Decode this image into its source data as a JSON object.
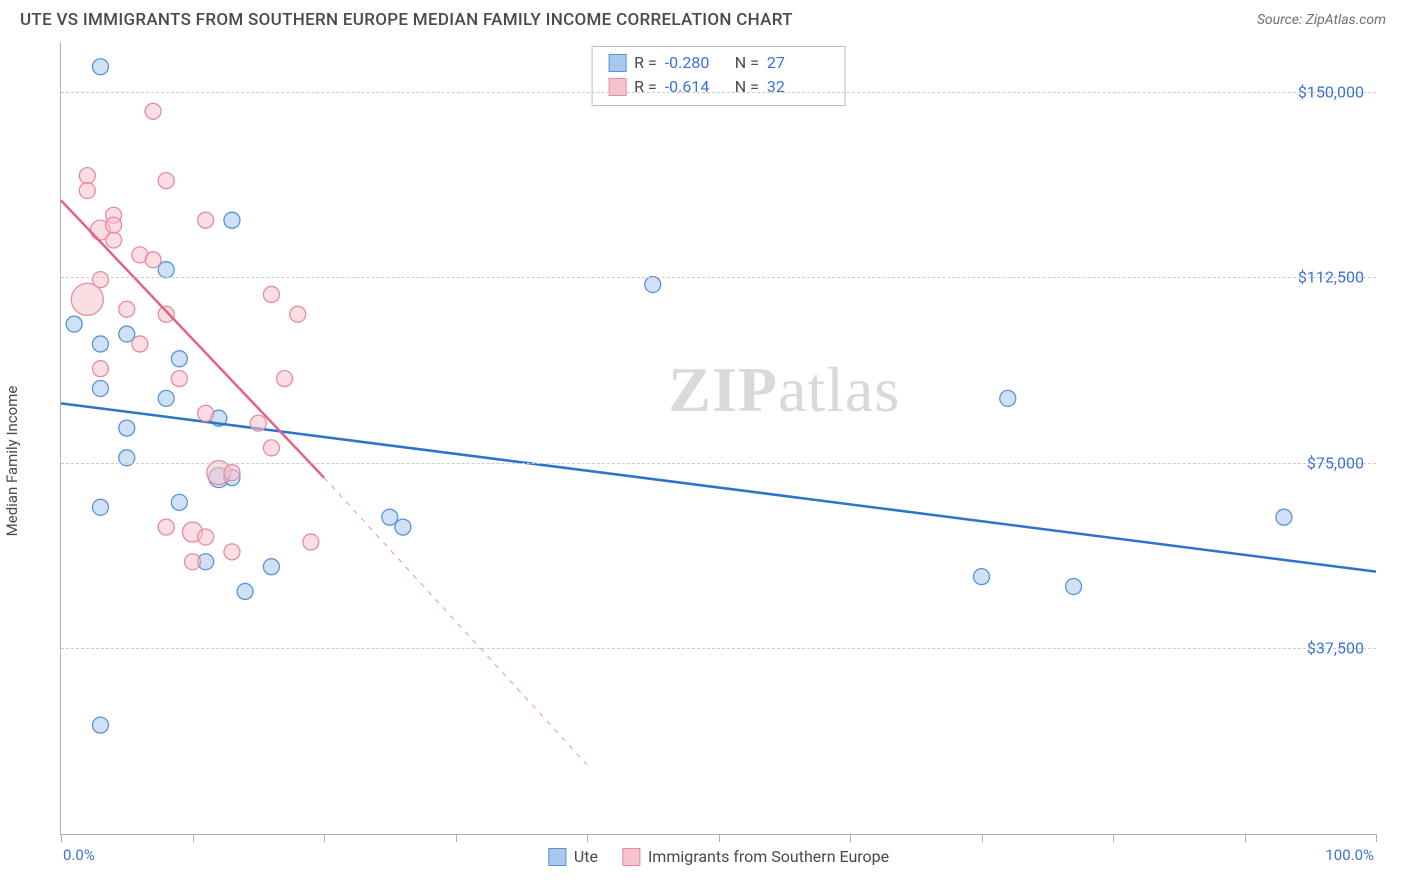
{
  "header": {
    "title": "UTE VS IMMIGRANTS FROM SOUTHERN EUROPE MEDIAN FAMILY INCOME CORRELATION CHART",
    "source": "Source: ZipAtlas.com"
  },
  "chart": {
    "type": "scatter",
    "ylabel": "Median Family Income",
    "xlim": [
      0,
      100
    ],
    "ylim": [
      0,
      160000
    ],
    "yticks": [
      {
        "value": 37500,
        "label": "$37,500"
      },
      {
        "value": 75000,
        "label": "$75,000"
      },
      {
        "value": 112500,
        "label": "$112,500"
      },
      {
        "value": 150000,
        "label": "$150,000"
      }
    ],
    "xticks_pct": [
      0,
      10,
      20,
      30,
      40,
      50,
      60,
      70,
      80,
      90,
      100
    ],
    "xaxis_min_label": "0.0%",
    "xaxis_max_label": "100.0%",
    "background_color": "#ffffff",
    "grid_color": "#cccccc",
    "axis_color": "#b0b0b0",
    "tick_label_color": "#3b74d4",
    "watermark": {
      "bold": "ZIP",
      "rest": "atlas"
    },
    "series": [
      {
        "name": "Ute",
        "color_fill": "#a9c9ec",
        "color_stroke": "#5a94d6",
        "trend_color": "#2f74c9",
        "trend_solid": {
          "x1": 0,
          "y1": 87000,
          "x2": 100,
          "y2": 53000
        },
        "trend_dashed": null,
        "stats": {
          "R": "-0.280",
          "N": "27"
        },
        "points": [
          {
            "x": 3,
            "y": 155000,
            "r": 8
          },
          {
            "x": 13,
            "y": 124000,
            "r": 8
          },
          {
            "x": 45,
            "y": 111000,
            "r": 8
          },
          {
            "x": 8,
            "y": 114000,
            "r": 8
          },
          {
            "x": 1,
            "y": 103000,
            "r": 8
          },
          {
            "x": 3,
            "y": 99000,
            "r": 8
          },
          {
            "x": 5,
            "y": 101000,
            "r": 8
          },
          {
            "x": 3,
            "y": 90000,
            "r": 8
          },
          {
            "x": 9,
            "y": 96000,
            "r": 8
          },
          {
            "x": 8,
            "y": 88000,
            "r": 8
          },
          {
            "x": 12,
            "y": 84000,
            "r": 8
          },
          {
            "x": 5,
            "y": 82000,
            "r": 8
          },
          {
            "x": 3,
            "y": 66000,
            "r": 8
          },
          {
            "x": 9,
            "y": 67000,
            "r": 8
          },
          {
            "x": 12,
            "y": 72000,
            "r": 10
          },
          {
            "x": 13,
            "y": 72000,
            "r": 8
          },
          {
            "x": 25,
            "y": 64000,
            "r": 8
          },
          {
            "x": 26,
            "y": 62000,
            "r": 8
          },
          {
            "x": 11,
            "y": 55000,
            "r": 8
          },
          {
            "x": 16,
            "y": 54000,
            "r": 8
          },
          {
            "x": 14,
            "y": 49000,
            "r": 8
          },
          {
            "x": 70,
            "y": 52000,
            "r": 8
          },
          {
            "x": 77,
            "y": 50000,
            "r": 8
          },
          {
            "x": 93,
            "y": 64000,
            "r": 8
          },
          {
            "x": 72,
            "y": 88000,
            "r": 8
          },
          {
            "x": 3,
            "y": 22000,
            "r": 8
          },
          {
            "x": 5,
            "y": 76000,
            "r": 8
          }
        ]
      },
      {
        "name": "Immigrants from Southern Europe",
        "color_fill": "#f5c3cd",
        "color_stroke": "#e88ba0",
        "trend_color": "#e26385",
        "trend_solid": {
          "x1": 0,
          "y1": 128000,
          "x2": 20,
          "y2": 72000
        },
        "trend_dashed": {
          "x1": 20,
          "y1": 72000,
          "x2": 40,
          "y2": 14000
        },
        "stats": {
          "R": "-0.614",
          "N": "32"
        },
        "points": [
          {
            "x": 7,
            "y": 146000,
            "r": 8
          },
          {
            "x": 2,
            "y": 133000,
            "r": 8
          },
          {
            "x": 8,
            "y": 132000,
            "r": 8
          },
          {
            "x": 2,
            "y": 130000,
            "r": 8
          },
          {
            "x": 4,
            "y": 125000,
            "r": 8
          },
          {
            "x": 3,
            "y": 122000,
            "r": 10
          },
          {
            "x": 4,
            "y": 120000,
            "r": 8
          },
          {
            "x": 4,
            "y": 123000,
            "r": 8
          },
          {
            "x": 11,
            "y": 124000,
            "r": 8
          },
          {
            "x": 6,
            "y": 117000,
            "r": 8
          },
          {
            "x": 7,
            "y": 116000,
            "r": 8
          },
          {
            "x": 3,
            "y": 112000,
            "r": 8
          },
          {
            "x": 2,
            "y": 108000,
            "r": 16
          },
          {
            "x": 5,
            "y": 106000,
            "r": 8
          },
          {
            "x": 8,
            "y": 105000,
            "r": 8
          },
          {
            "x": 16,
            "y": 109000,
            "r": 8
          },
          {
            "x": 18,
            "y": 105000,
            "r": 8
          },
          {
            "x": 6,
            "y": 99000,
            "r": 8
          },
          {
            "x": 3,
            "y": 94000,
            "r": 8
          },
          {
            "x": 9,
            "y": 92000,
            "r": 8
          },
          {
            "x": 17,
            "y": 92000,
            "r": 8
          },
          {
            "x": 11,
            "y": 85000,
            "r": 8
          },
          {
            "x": 15,
            "y": 83000,
            "r": 8
          },
          {
            "x": 16,
            "y": 78000,
            "r": 8
          },
          {
            "x": 12,
            "y": 73000,
            "r": 12
          },
          {
            "x": 13,
            "y": 73000,
            "r": 8
          },
          {
            "x": 8,
            "y": 62000,
            "r": 8
          },
          {
            "x": 10,
            "y": 61000,
            "r": 10
          },
          {
            "x": 11,
            "y": 60000,
            "r": 8
          },
          {
            "x": 19,
            "y": 59000,
            "r": 8
          },
          {
            "x": 13,
            "y": 57000,
            "r": 8
          },
          {
            "x": 10,
            "y": 55000,
            "r": 8
          }
        ]
      }
    ]
  },
  "legend": {
    "items": [
      "Ute",
      "Immigrants from Southern Europe"
    ]
  }
}
